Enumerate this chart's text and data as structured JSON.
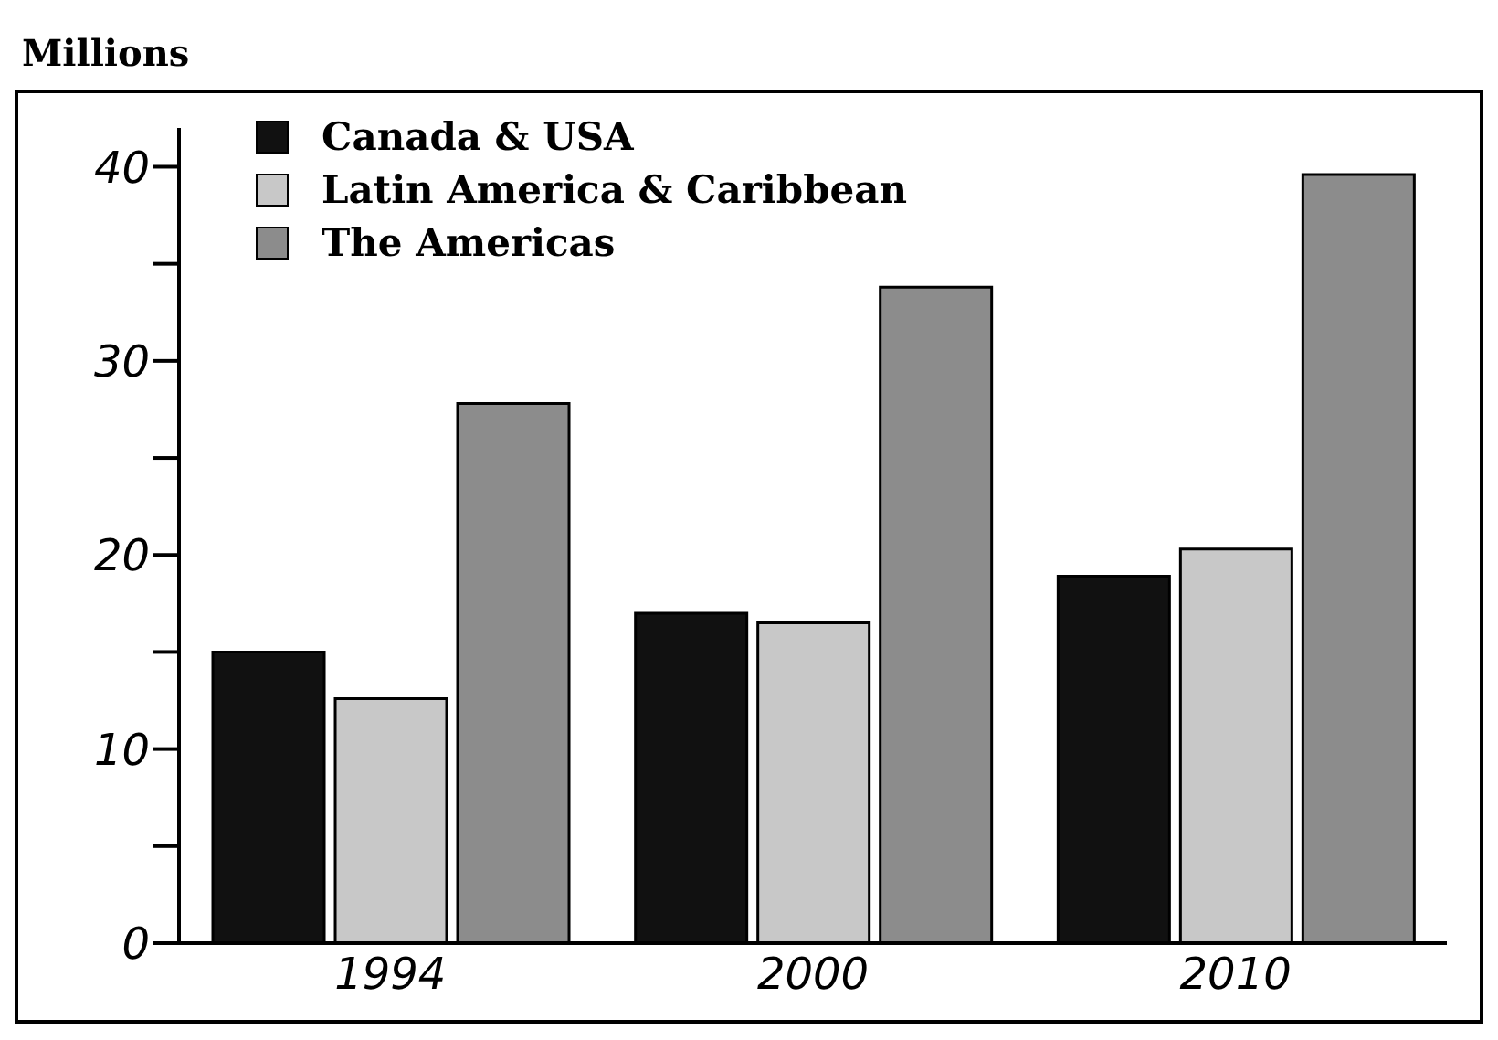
{
  "chart_data": {
    "type": "bar",
    "ylabel": "Millions",
    "categories": [
      "1994",
      "2000",
      "2010"
    ],
    "series": [
      {
        "name": "Canada & USA",
        "color": "#111111",
        "values": [
          15,
          17,
          18.9
        ]
      },
      {
        "name": "Latin America & Caribbean",
        "color": "#c8c8c8",
        "values": [
          12.6,
          16.5,
          20.3
        ]
      },
      {
        "name": "The Americas",
        "color": "#8c8c8c",
        "values": [
          27.8,
          33.8,
          39.6
        ]
      }
    ],
    "ylim": [
      0,
      42
    ],
    "yticks": [
      0,
      {
        "value": 5,
        "label": null
      },
      10,
      {
        "value": 15,
        "label": null
      },
      20,
      {
        "value": 25,
        "label": null
      },
      30,
      {
        "value": 35,
        "label": null
      },
      40
    ],
    "grid": false,
    "legend": "top left"
  }
}
